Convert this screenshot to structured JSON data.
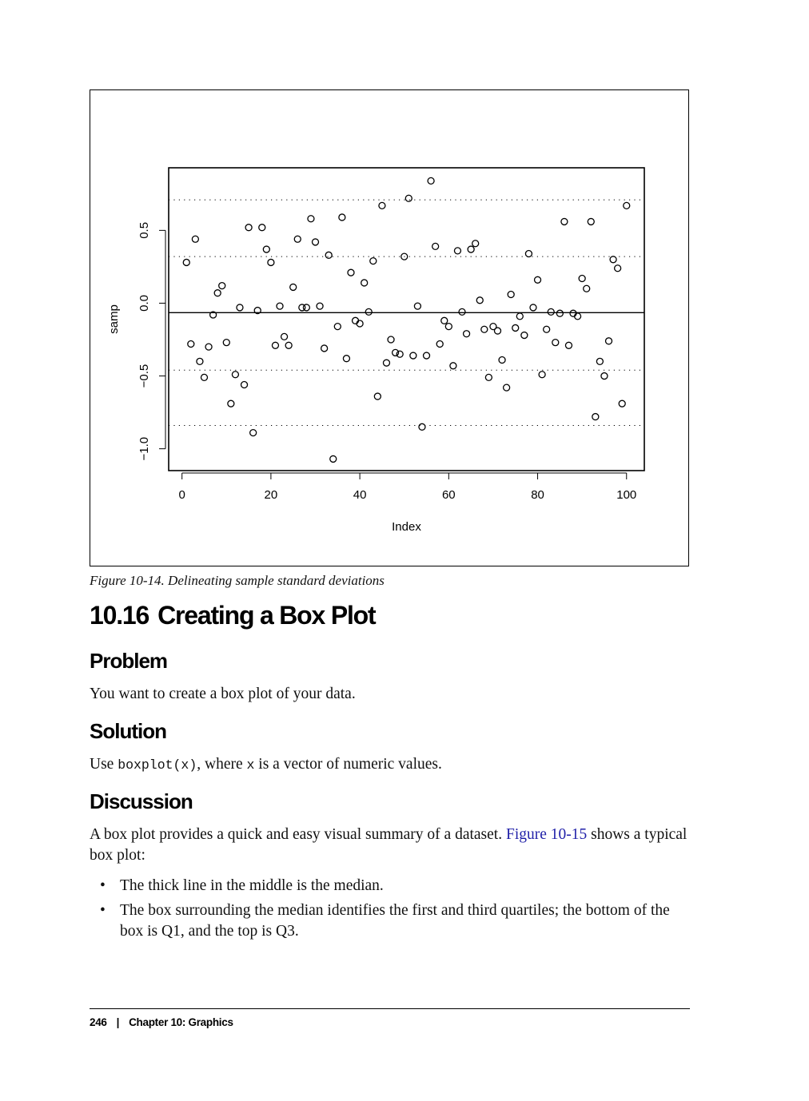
{
  "chart_data": {
    "type": "scatter",
    "title": "",
    "xlabel": "Index",
    "ylabel": "samp",
    "xlim": [
      -3,
      104
    ],
    "ylim": [
      -1.15,
      0.93
    ],
    "xticks": [
      0,
      20,
      40,
      60,
      80,
      100
    ],
    "xtick_labels": [
      "0",
      "20",
      "40",
      "60",
      "80",
      "100"
    ],
    "yticks": [
      -1.0,
      -0.5,
      0.0,
      0.5
    ],
    "ytick_labels": [
      "−1.0",
      "−0.5",
      "0.0",
      "0.5"
    ],
    "mean_line": -0.065,
    "sd_lines": [
      -0.84,
      -0.46,
      0.32,
      0.71
    ],
    "grid": false,
    "marker": "open-circle",
    "x": [
      1,
      2,
      3,
      4,
      5,
      6,
      7,
      8,
      9,
      10,
      11,
      12,
      13,
      14,
      15,
      16,
      17,
      18,
      19,
      20,
      21,
      22,
      23,
      24,
      25,
      26,
      27,
      28,
      29,
      30,
      31,
      32,
      33,
      34,
      35,
      36,
      37,
      38,
      39,
      40,
      41,
      42,
      43,
      44,
      45,
      46,
      47,
      48,
      49,
      50,
      51,
      52,
      53,
      54,
      55,
      56,
      57,
      58,
      59,
      60,
      61,
      62,
      63,
      64,
      65,
      66,
      67,
      68,
      69,
      70,
      71,
      72,
      73,
      74,
      75,
      76,
      77,
      78,
      79,
      80,
      81,
      82,
      83,
      84,
      85,
      86,
      87,
      88,
      89,
      90,
      91,
      92,
      93,
      94,
      95,
      96,
      97,
      98,
      99,
      100
    ],
    "y": [
      0.28,
      -0.28,
      0.44,
      -0.4,
      -0.51,
      -0.3,
      -0.08,
      0.07,
      0.12,
      -0.27,
      -0.69,
      -0.49,
      -0.03,
      -0.56,
      0.52,
      -0.89,
      -0.05,
      0.52,
      0.37,
      0.28,
      -0.29,
      -0.02,
      -0.23,
      -0.29,
      0.11,
      0.44,
      -0.03,
      -0.03,
      0.58,
      0.42,
      -0.02,
      -0.31,
      0.33,
      -1.07,
      -0.16,
      0.59,
      -0.38,
      0.21,
      -0.12,
      -0.14,
      0.14,
      -0.06,
      0.29,
      -0.64,
      0.67,
      -0.41,
      -0.25,
      -0.34,
      -0.35,
      0.32,
      0.72,
      -0.36,
      -0.02,
      -0.85,
      -0.36,
      0.84,
      0.39,
      -0.28,
      -0.12,
      -0.16,
      -0.43,
      0.36,
      -0.06,
      -0.21,
      0.37,
      0.41,
      0.02,
      -0.18,
      -0.51,
      -0.16,
      -0.19,
      -0.39,
      -0.58,
      0.06,
      -0.17,
      -0.09,
      -0.22,
      0.34,
      -0.03,
      0.16,
      -0.49,
      -0.18,
      -0.06,
      -0.27,
      -0.07,
      0.56,
      -0.29,
      -0.07,
      -0.09,
      0.17,
      0.1,
      0.56,
      -0.78,
      -0.4,
      -0.5,
      -0.26,
      0.3,
      0.24,
      -0.69,
      0.67
    ]
  },
  "caption": "Figure 10-14. Delineating sample standard deviations",
  "section": {
    "number": "10.16",
    "title": "Creating a Box Plot"
  },
  "problem": {
    "heading": "Problem",
    "text": "You want to create a box plot of your data."
  },
  "solution": {
    "heading": "Solution",
    "text_before": "Use ",
    "code1": "boxplot(x)",
    "text_mid": ", where ",
    "code2": "x",
    "text_after": " is a vector of numeric values."
  },
  "discussion": {
    "heading": "Discussion",
    "text_before": "A box plot provides a quick and easy visual summary of a dataset. ",
    "link": "Figure 10-15",
    "text_after": " shows a typical box plot:",
    "bullets": [
      "The thick line in the middle is the median.",
      "The box surrounding the median identifies the first and third quartiles; the bottom of the box is Q1, and the top is Q3."
    ],
    "bullet_symbol": "•"
  },
  "footer": {
    "page_number": "246",
    "separator": "|",
    "chapter": "Chapter 10:  Graphics"
  }
}
